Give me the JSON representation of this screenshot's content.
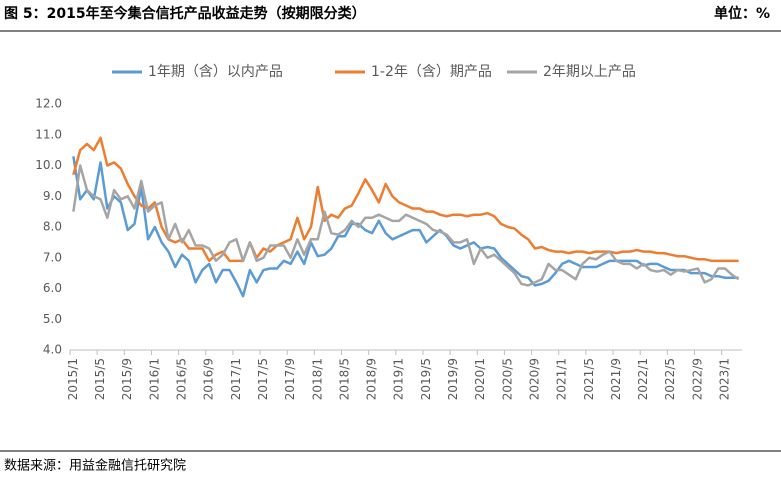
{
  "header": {
    "title": "图 5：2015年至今集合信托产品收益走势（按期限分类）",
    "unit": "单位：%"
  },
  "chart_data": {
    "type": "line",
    "categories": [
      "2015/1",
      null,
      null,
      null,
      "2015/5",
      null,
      null,
      null,
      "2015/9",
      null,
      null,
      null,
      "2016/1",
      null,
      null,
      null,
      "2016/5",
      null,
      null,
      null,
      "2016/9",
      null,
      null,
      null,
      "2017/1",
      null,
      null,
      null,
      "2017/5",
      null,
      null,
      null,
      "2017/9",
      null,
      null,
      null,
      "2018/1",
      null,
      null,
      null,
      "2018/5",
      null,
      null,
      null,
      "2018/9",
      null,
      null,
      null,
      "2019/1",
      null,
      null,
      null,
      "2019/5",
      null,
      null,
      null,
      "2019/9",
      null,
      null,
      null,
      "2020/1",
      null,
      null,
      null,
      "2020/5",
      null,
      null,
      null,
      "2020/9",
      null,
      null,
      null,
      "2021/1",
      null,
      null,
      null,
      "2021/5",
      null,
      null,
      null,
      "2021/9",
      null,
      null,
      null,
      "2022/1",
      null,
      null,
      null,
      "2022/5",
      null,
      null,
      null,
      "2022/9",
      null,
      null,
      null,
      "2023/1",
      null,
      null
    ],
    "series": [
      {
        "name": "1年期（含）以内产品",
        "color": "#5b9bd5",
        "values": [
          10.3,
          8.9,
          9.2,
          8.9,
          10.1,
          8.6,
          9.0,
          8.8,
          7.9,
          8.1,
          9.3,
          7.6,
          8.0,
          7.5,
          7.2,
          6.7,
          7.1,
          6.9,
          6.2,
          6.6,
          6.8,
          6.2,
          6.6,
          6.6,
          6.2,
          5.75,
          6.6,
          6.2,
          6.6,
          6.65,
          6.65,
          6.9,
          6.8,
          7.2,
          6.8,
          7.5,
          7.05,
          7.1,
          7.3,
          7.7,
          7.7,
          8.1,
          8.1,
          7.9,
          7.8,
          8.2,
          7.8,
          7.6,
          7.7,
          7.8,
          7.9,
          7.9,
          7.5,
          7.7,
          7.9,
          7.7,
          7.4,
          7.3,
          7.4,
          7.5,
          7.3,
          7.35,
          7.3,
          7.0,
          6.8,
          6.6,
          6.4,
          6.35,
          6.1,
          6.15,
          6.25,
          6.5,
          6.8,
          6.9,
          6.8,
          6.7,
          6.7,
          6.7,
          6.8,
          6.9,
          6.9,
          6.9,
          6.9,
          6.9,
          6.75,
          6.8,
          6.8,
          6.7,
          6.6,
          6.6,
          6.6,
          6.5,
          6.5,
          6.5,
          6.4,
          6.4,
          6.35,
          6.35,
          6.35
        ]
      },
      {
        "name": "1-2年（含）期产品",
        "color": "#ed7d31",
        "values": [
          9.7,
          10.5,
          10.7,
          10.5,
          10.9,
          10.0,
          10.1,
          9.9,
          9.4,
          9.0,
          8.7,
          8.6,
          8.8,
          8.0,
          7.6,
          7.5,
          7.6,
          7.3,
          7.3,
          7.3,
          6.9,
          7.1,
          7.2,
          6.9,
          6.9,
          6.9,
          7.5,
          7.0,
          7.3,
          7.2,
          7.4,
          7.5,
          7.6,
          8.3,
          7.6,
          8.0,
          9.3,
          8.2,
          8.4,
          8.3,
          8.6,
          8.7,
          9.1,
          9.55,
          9.2,
          8.8,
          9.4,
          9.0,
          8.8,
          8.7,
          8.6,
          8.6,
          8.5,
          8.5,
          8.4,
          8.35,
          8.4,
          8.4,
          8.35,
          8.4,
          8.4,
          8.45,
          8.35,
          8.1,
          8.0,
          7.95,
          7.75,
          7.6,
          7.3,
          7.35,
          7.25,
          7.2,
          7.2,
          7.15,
          7.2,
          7.2,
          7.15,
          7.2,
          7.2,
          7.2,
          7.15,
          7.2,
          7.2,
          7.25,
          7.2,
          7.2,
          7.15,
          7.15,
          7.1,
          7.05,
          7.05,
          7.0,
          6.95,
          6.95,
          6.9,
          6.9,
          6.9,
          6.9,
          6.9
        ]
      },
      {
        "name": "2年期以上产品",
        "color": "#a5a5a5",
        "values": [
          8.5,
          10.0,
          9.2,
          9.0,
          8.9,
          8.3,
          9.2,
          8.9,
          9.0,
          8.6,
          9.5,
          8.5,
          8.7,
          8.8,
          7.6,
          8.1,
          7.5,
          7.9,
          7.4,
          7.4,
          7.3,
          6.9,
          7.1,
          7.5,
          7.6,
          6.9,
          7.5,
          6.9,
          7.0,
          7.4,
          7.4,
          7.4,
          7.0,
          7.6,
          7.1,
          7.6,
          7.6,
          8.5,
          7.8,
          7.75,
          7.9,
          8.2,
          8.0,
          8.3,
          8.3,
          8.4,
          8.3,
          8.2,
          8.2,
          8.4,
          8.3,
          8.2,
          8.1,
          7.9,
          7.85,
          7.75,
          7.5,
          7.5,
          7.6,
          6.8,
          7.3,
          7.0,
          7.1,
          6.9,
          6.7,
          6.5,
          6.15,
          6.1,
          6.2,
          6.3,
          6.8,
          6.6,
          6.6,
          6.45,
          6.3,
          6.8,
          7.0,
          6.95,
          7.1,
          7.2,
          6.9,
          6.8,
          6.8,
          6.65,
          6.8,
          6.6,
          6.55,
          6.6,
          6.45,
          6.6,
          6.55,
          6.6,
          6.65,
          6.2,
          6.3,
          6.65,
          6.65,
          6.45,
          6.3
        ]
      }
    ],
    "ylim": [
      4,
      12
    ],
    "yticks": [
      {
        "value": 4,
        "label": "4.0"
      },
      {
        "value": 5,
        "label": "5.0"
      },
      {
        "value": 6,
        "label": "6.0"
      },
      {
        "value": 7,
        "label": "7.0"
      },
      {
        "value": 8,
        "label": "8.0"
      },
      {
        "value": 9,
        "label": "9.0"
      },
      {
        "value": 10,
        "label": "10.0"
      },
      {
        "value": 11,
        "label": "11.0"
      },
      {
        "value": 12,
        "label": "12.0"
      }
    ],
    "grid": false
  },
  "footer": {
    "source": "数据来源：用益金融信托研究院"
  }
}
